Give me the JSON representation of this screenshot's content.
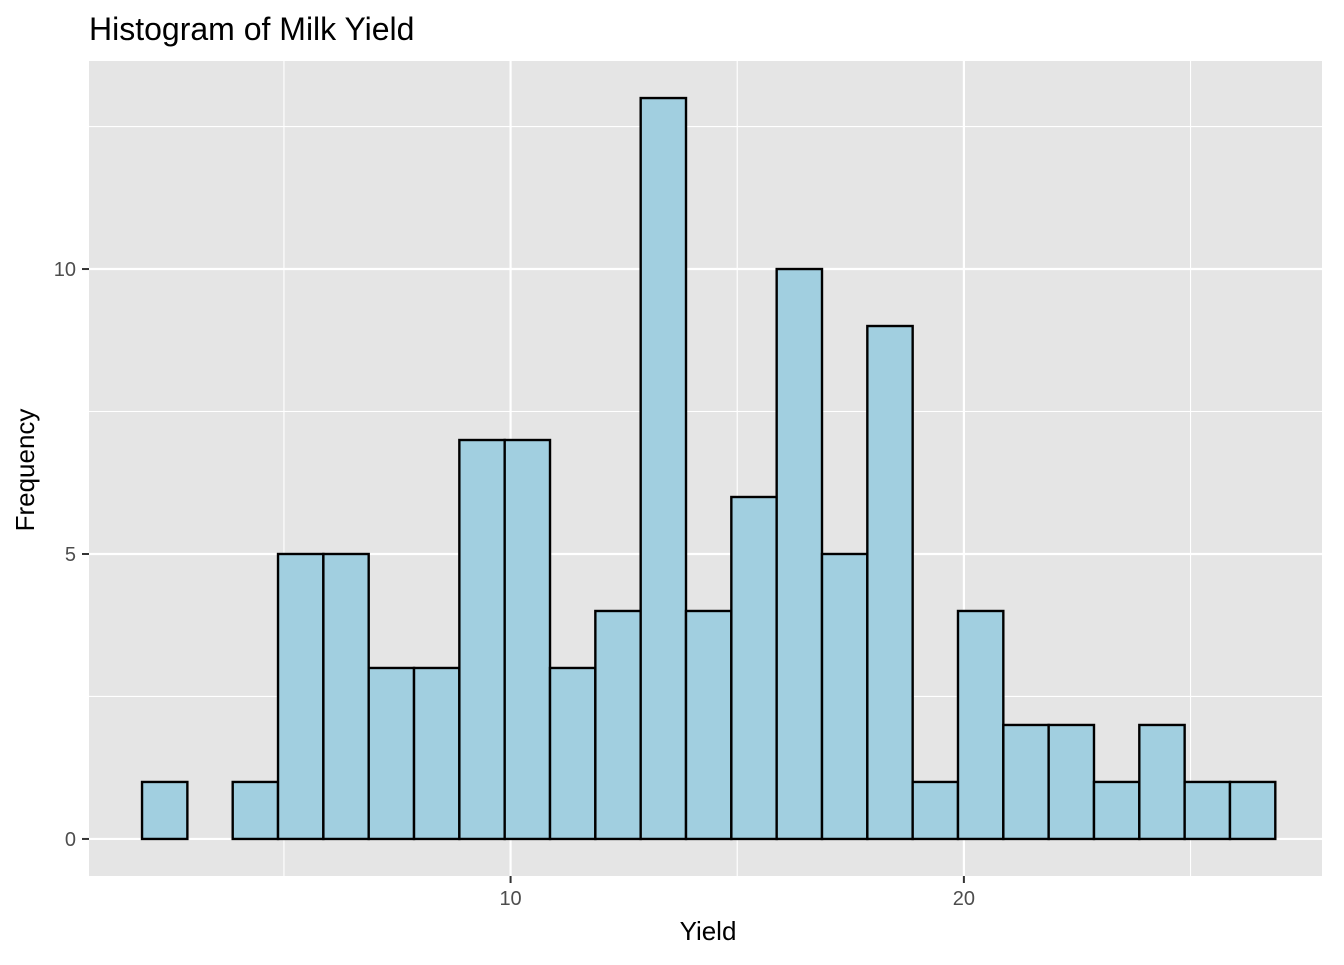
{
  "chart_data": {
    "type": "bar",
    "title": "Histogram of Milk Yield",
    "xlabel": "Yield",
    "ylabel": "Frequency",
    "bin_width": 1,
    "bins": [
      {
        "x_min": 1.87,
        "x_max": 2.87,
        "count": 1
      },
      {
        "x_min": 2.87,
        "x_max": 3.87,
        "count": 0
      },
      {
        "x_min": 3.87,
        "x_max": 4.87,
        "count": 1
      },
      {
        "x_min": 4.87,
        "x_max": 5.87,
        "count": 5
      },
      {
        "x_min": 5.87,
        "x_max": 6.87,
        "count": 5
      },
      {
        "x_min": 6.87,
        "x_max": 7.87,
        "count": 3
      },
      {
        "x_min": 7.87,
        "x_max": 8.87,
        "count": 3
      },
      {
        "x_min": 8.87,
        "x_max": 9.87,
        "count": 7
      },
      {
        "x_min": 9.87,
        "x_max": 10.87,
        "count": 7
      },
      {
        "x_min": 10.87,
        "x_max": 11.87,
        "count": 3
      },
      {
        "x_min": 11.87,
        "x_max": 12.87,
        "count": 4
      },
      {
        "x_min": 12.87,
        "x_max": 13.87,
        "count": 13
      },
      {
        "x_min": 13.87,
        "x_max": 14.87,
        "count": 4
      },
      {
        "x_min": 14.87,
        "x_max": 15.87,
        "count": 6
      },
      {
        "x_min": 15.87,
        "x_max": 16.87,
        "count": 10
      },
      {
        "x_min": 16.87,
        "x_max": 17.87,
        "count": 5
      },
      {
        "x_min": 17.87,
        "x_max": 18.87,
        "count": 9
      },
      {
        "x_min": 18.87,
        "x_max": 19.87,
        "count": 1
      },
      {
        "x_min": 19.87,
        "x_max": 20.87,
        "count": 4
      },
      {
        "x_min": 20.87,
        "x_max": 21.87,
        "count": 2
      },
      {
        "x_min": 21.87,
        "x_max": 22.87,
        "count": 2
      },
      {
        "x_min": 22.87,
        "x_max": 23.87,
        "count": 1
      },
      {
        "x_min": 23.87,
        "x_max": 24.87,
        "count": 2
      },
      {
        "x_min": 24.87,
        "x_max": 25.87,
        "count": 1
      },
      {
        "x_min": 25.87,
        "x_max": 26.87,
        "count": 1
      }
    ],
    "xlim": [
      0.7,
      27.9
    ],
    "ylim": [
      -0.65,
      13.65
    ],
    "x_ticks": [
      10,
      20
    ],
    "x_ticks_minor": [
      5,
      15,
      25
    ],
    "y_ticks": [
      0,
      5,
      10
    ],
    "y_ticks_minor": [
      2.5,
      7.5,
      12.5
    ],
    "grid": true,
    "colors": {
      "bar_fill": "#a1cfe0",
      "bar_outline": "#000000",
      "panel_background": "#e5e5e5",
      "grid": "#ffffff"
    }
  }
}
